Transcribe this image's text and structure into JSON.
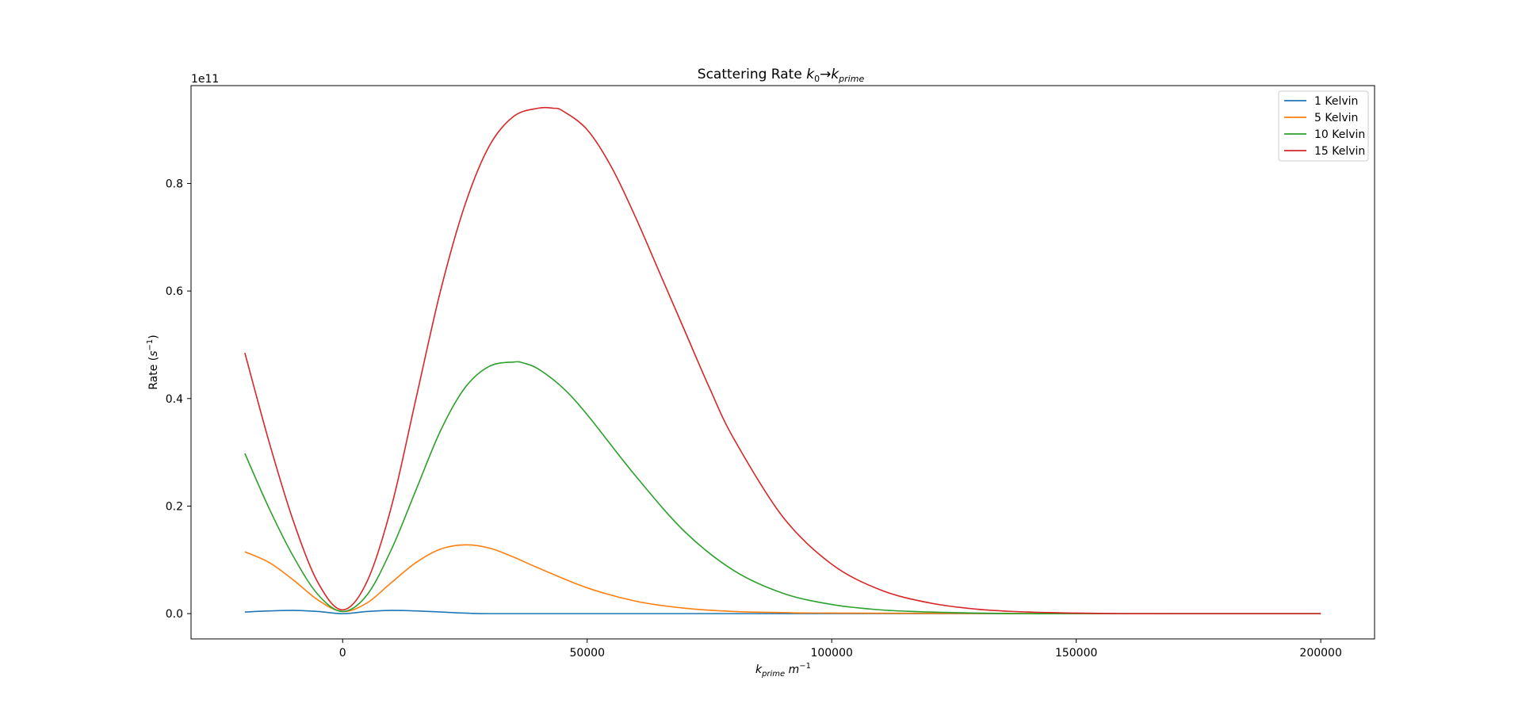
{
  "chart_data": {
    "type": "line",
    "title": {
      "prefix": "Scattering Rate ",
      "k": "k",
      "sub0": "0",
      "arrow": "→",
      "k2": "k",
      "sub_prime": "prime"
    },
    "xlabel": {
      "k": "k",
      "sub": "prime",
      "unit": " m",
      "exp": "−1"
    },
    "ylabel": {
      "prefix": "Rate (",
      "s": "s",
      "exp": "−1",
      "suffix": ")"
    },
    "y_offset_text": "1e11",
    "xlim": [
      -31000,
      211000
    ],
    "ylim": [
      -0.047,
      0.982
    ],
    "y_scale": 100000000000.0,
    "x_ticks": [
      0,
      50000,
      100000,
      150000,
      200000
    ],
    "x_tick_labels": [
      "0",
      "50000",
      "100000",
      "150000",
      "200000"
    ],
    "y_ticks": [
      0.0,
      0.2,
      0.4,
      0.6,
      0.8
    ],
    "y_tick_labels": [
      "0.0",
      "0.2",
      "0.4",
      "0.6",
      "0.8"
    ],
    "legend_position": "top-right",
    "grid": false,
    "series": [
      {
        "name": "1 Kelvin",
        "color": "#1f77b4",
        "x": [
          -20000,
          -15000,
          -10000,
          -5000,
          0,
          5000,
          10000,
          15000,
          20000,
          25000,
          30000,
          50000,
          100000,
          150000,
          200000
        ],
        "y": [
          0.003,
          0.005,
          0.006,
          0.004,
          0.0,
          0.004,
          0.006,
          0.005,
          0.003,
          0.001,
          0.0,
          0.0,
          0.0,
          0.0,
          0.0
        ]
      },
      {
        "name": "5 Kelvin",
        "color": "#ff7f0e",
        "x": [
          -20000,
          -15000,
          -10000,
          -5000,
          0,
          5000,
          10000,
          15000,
          20000,
          25000,
          30000,
          35000,
          40000,
          50000,
          60000,
          70000,
          80000,
          90000,
          100000,
          150000,
          200000
        ],
        "y": [
          0.115,
          0.095,
          0.062,
          0.025,
          0.004,
          0.02,
          0.058,
          0.095,
          0.12,
          0.128,
          0.122,
          0.105,
          0.085,
          0.048,
          0.023,
          0.01,
          0.004,
          0.002,
          0.001,
          0.0,
          0.0
        ]
      },
      {
        "name": "10 Kelvin",
        "color": "#2ca02c",
        "x": [
          -20000,
          -15000,
          -10000,
          -5000,
          0,
          5000,
          10000,
          15000,
          20000,
          25000,
          30000,
          35000,
          37000,
          40000,
          45000,
          50000,
          60000,
          70000,
          80000,
          90000,
          100000,
          110000,
          120000,
          130000,
          140000,
          150000,
          200000
        ],
        "y": [
          0.298,
          0.195,
          0.105,
          0.035,
          0.004,
          0.035,
          0.12,
          0.23,
          0.34,
          0.42,
          0.46,
          0.468,
          0.466,
          0.455,
          0.42,
          0.37,
          0.255,
          0.152,
          0.08,
          0.038,
          0.017,
          0.007,
          0.003,
          0.001,
          0.0,
          0.0,
          0.0
        ]
      },
      {
        "name": "15 Kelvin",
        "color": "#d62728",
        "x": [
          -20000,
          -15000,
          -10000,
          -5000,
          0,
          5000,
          10000,
          15000,
          20000,
          25000,
          30000,
          35000,
          40000,
          43000,
          45000,
          50000,
          55000,
          60000,
          65000,
          70000,
          75000,
          80000,
          90000,
          100000,
          110000,
          120000,
          130000,
          140000,
          150000,
          160000,
          170000,
          200000
        ],
        "y": [
          0.485,
          0.318,
          0.17,
          0.057,
          0.007,
          0.06,
          0.2,
          0.4,
          0.6,
          0.76,
          0.87,
          0.925,
          0.94,
          0.94,
          0.935,
          0.9,
          0.83,
          0.735,
          0.63,
          0.525,
          0.42,
          0.325,
          0.18,
          0.092,
          0.044,
          0.02,
          0.008,
          0.003,
          0.001,
          0.0,
          0.0,
          0.0
        ]
      }
    ]
  }
}
